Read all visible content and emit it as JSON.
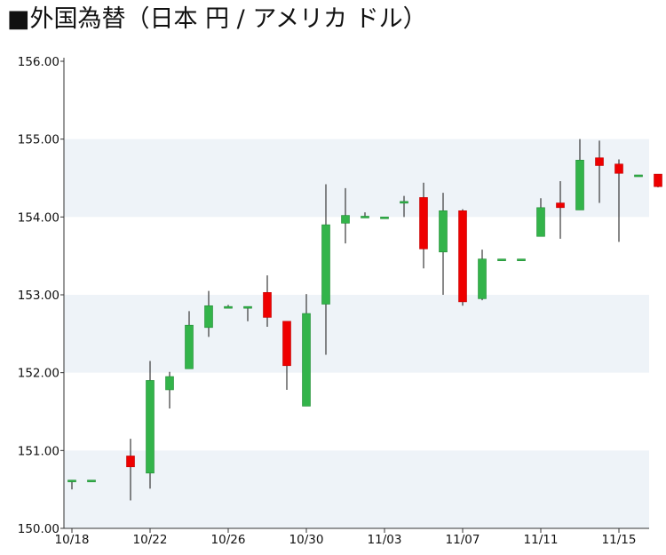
{
  "title": "■外国為替（日本 円 / アメリカ ドル）",
  "colors": {
    "up": "#33b44a",
    "down": "#ee0000",
    "band": "#eef3f8",
    "axis": "#333333"
  },
  "chart_data": {
    "type": "candlestick",
    "title": "■外国為替（日本 円 / アメリカ ドル）",
    "ylim": [
      150.0,
      156.0
    ],
    "y_ticks": [
      "150.00",
      "151.00",
      "152.00",
      "153.00",
      "154.00",
      "155.00",
      "156.00"
    ],
    "x_tick_labels": [
      "10/18",
      "10/22",
      "10/26",
      "10/30",
      "11/03",
      "11/07",
      "11/11",
      "11/15"
    ],
    "grid": "alternating horizontal bands",
    "candles": [
      {
        "date": "10/18",
        "open": 150.62,
        "high": 150.62,
        "low": 150.5,
        "close": 150.62
      },
      {
        "date": "10/19",
        "open": 150.62,
        "high": 150.62,
        "low": 150.62,
        "close": 150.62
      },
      {
        "date": "10/21",
        "open": 150.93,
        "high": 151.15,
        "low": 150.36,
        "close": 150.79
      },
      {
        "date": "10/22",
        "open": 150.71,
        "high": 152.15,
        "low": 150.51,
        "close": 151.9
      },
      {
        "date": "10/23",
        "open": 151.78,
        "high": 152.01,
        "low": 151.54,
        "close": 151.95
      },
      {
        "date": "10/24",
        "open": 152.05,
        "high": 152.79,
        "low": 152.05,
        "close": 152.61
      },
      {
        "date": "10/25",
        "open": 152.58,
        "high": 153.05,
        "low": 152.46,
        "close": 152.86
      },
      {
        "date": "10/26",
        "open": 152.85,
        "high": 152.87,
        "low": 152.85,
        "close": 152.85
      },
      {
        "date": "10/27",
        "open": 152.85,
        "high": 152.85,
        "low": 152.66,
        "close": 152.85
      },
      {
        "date": "10/28",
        "open": 153.03,
        "high": 153.25,
        "low": 152.59,
        "close": 152.71
      },
      {
        "date": "10/29",
        "open": 152.66,
        "high": 152.66,
        "low": 151.78,
        "close": 152.09
      },
      {
        "date": "10/30",
        "open": 151.57,
        "high": 153.01,
        "low": 151.57,
        "close": 152.76
      },
      {
        "date": "10/31",
        "open": 152.88,
        "high": 154.42,
        "low": 152.23,
        "close": 153.9
      },
      {
        "date": "11/01",
        "open": 153.92,
        "high": 154.37,
        "low": 153.66,
        "close": 154.02
      },
      {
        "date": "11/02",
        "open": 154.01,
        "high": 154.06,
        "low": 154.01,
        "close": 154.01
      },
      {
        "date": "11/03",
        "open": 154.0,
        "high": 154.0,
        "low": 154.0,
        "close": 154.0
      },
      {
        "date": "11/04",
        "open": 154.2,
        "high": 154.27,
        "low": 154.0,
        "close": 154.2
      },
      {
        "date": "11/05",
        "open": 154.25,
        "high": 154.44,
        "low": 153.34,
        "close": 153.59
      },
      {
        "date": "11/06",
        "open": 153.55,
        "high": 154.31,
        "low": 153.0,
        "close": 154.08
      },
      {
        "date": "11/07",
        "open": 154.08,
        "high": 154.1,
        "low": 152.86,
        "close": 152.91
      },
      {
        "date": "11/08",
        "open": 152.95,
        "high": 153.58,
        "low": 152.93,
        "close": 153.46
      },
      {
        "date": "11/09",
        "open": 153.46,
        "high": 153.46,
        "low": 153.46,
        "close": 153.46
      },
      {
        "date": "11/10",
        "open": 153.46,
        "high": 153.46,
        "low": 153.46,
        "close": 153.46
      },
      {
        "date": "11/11",
        "open": 153.75,
        "high": 154.24,
        "low": 153.75,
        "close": 154.12
      },
      {
        "date": "11/12",
        "open": 154.18,
        "high": 154.46,
        "low": 153.72,
        "close": 154.12
      },
      {
        "date": "11/13",
        "open": 154.09,
        "high": 155.0,
        "low": 154.09,
        "close": 154.73
      },
      {
        "date": "11/14",
        "open": 154.76,
        "high": 154.98,
        "low": 154.18,
        "close": 154.66
      },
      {
        "date": "11/15",
        "open": 154.68,
        "high": 154.74,
        "low": 153.68,
        "close": 154.56
      },
      {
        "date": "11/16",
        "open": 154.54,
        "high": 154.54,
        "low": 154.54,
        "close": 154.54
      },
      {
        "date": "11/17",
        "open": 154.55,
        "high": 154.55,
        "low": 154.38,
        "close": 154.39
      }
    ]
  }
}
